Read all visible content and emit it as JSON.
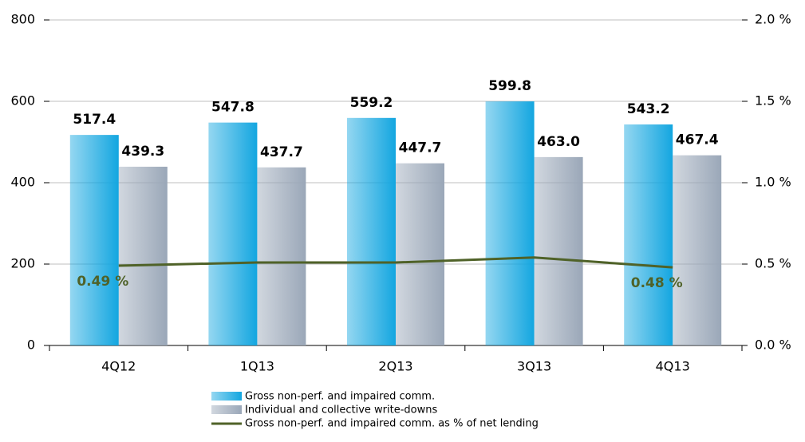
{
  "chart_data": {
    "type": "bar",
    "categories": [
      "4Q12",
      "1Q13",
      "2Q13",
      "3Q13",
      "4Q13"
    ],
    "series": [
      {
        "name": "Gross non-perf. and impaired comm.",
        "color": "#13a6e0",
        "values": [
          517.4,
          547.8,
          559.2,
          599.8,
          543.2
        ],
        "value_labels": [
          "517.4",
          "547.8",
          "559.2",
          "599.8",
          "543.2"
        ]
      },
      {
        "name": "Individual and collective write-downs",
        "color": "#9aa7b8",
        "values": [
          439.3,
          437.7,
          447.7,
          463.0,
          467.4
        ],
        "value_labels": [
          "439.3",
          "437.7",
          "447.7",
          "463.0",
          "467.4"
        ]
      },
      {
        "name": "Gross non-perf. and impaired comm. as % of net lending",
        "type": "line",
        "axis": "y2",
        "color": "#4f6228",
        "values": [
          0.49,
          0.51,
          0.51,
          0.54,
          0.48
        ],
        "value_labels": [
          "0.49 %",
          null,
          null,
          null,
          "0.48 %"
        ]
      }
    ],
    "ylim": [
      0,
      800
    ],
    "yticks": [
      0,
      200,
      400,
      600,
      800
    ],
    "y2lim": [
      0,
      2.0
    ],
    "y2ticks": [
      {
        "value": 0,
        "label": "0.0 %"
      },
      {
        "value": 0.5,
        "label": "0.5 %"
      },
      {
        "value": 1.0,
        "label": "1.0 %"
      },
      {
        "value": 1.5,
        "label": "1.5 %"
      },
      {
        "value": 2.0,
        "label": "2.0 %"
      }
    ],
    "grid": true,
    "legend": "bottom"
  }
}
